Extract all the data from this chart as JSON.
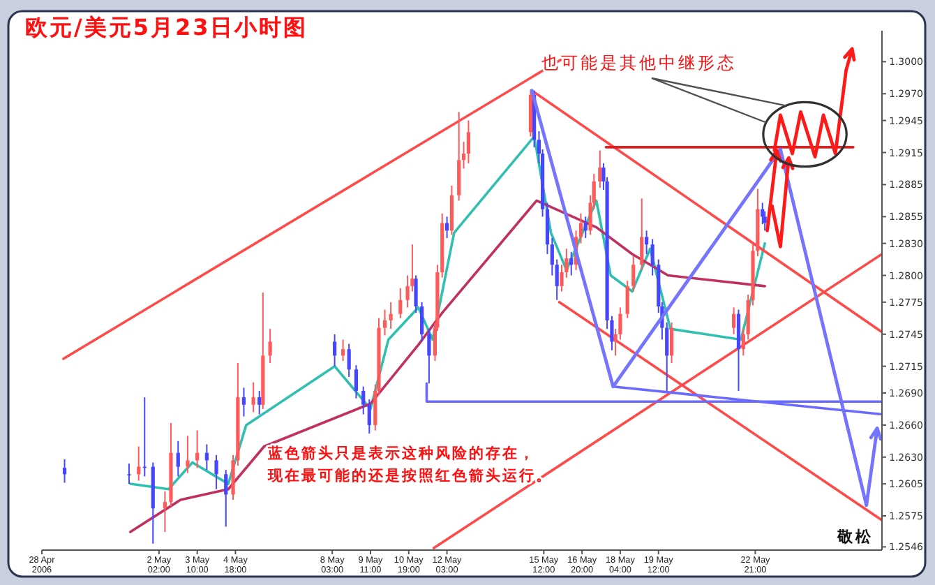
{
  "chart_data": {
    "type": "candlestick",
    "title": "欧元/美元5月23日小时图",
    "annotations": [
      "也可能是其他中继形态",
      "蓝色箭头只是表示这种风险的存在，",
      "现在最可能的还是按照红色箭头运行。",
      "敬松"
    ],
    "xlim": [
      "2006-04-28",
      "2006-05-27T07:00"
    ],
    "ylim": [
      1.2543,
      1.3029
    ],
    "xticks": [
      {
        "value": "2006-04-28",
        "label": "28 Apr 2006"
      },
      {
        "value": "2006-05-02T02:00",
        "label": "2 May 02:00"
      },
      {
        "value": "2006-05-03T10:00",
        "label": "3 May 10:00"
      },
      {
        "value": "2006-05-04T18:00",
        "label": "4 May 18:00"
      },
      {
        "value": "2006-05-08T03:00",
        "label": "8 May 03:00"
      },
      {
        "value": "2006-05-09T11:00",
        "label": "9 May 11:00"
      },
      {
        "value": "2006-05-10T19:00",
        "label": "10 May 19:00"
      },
      {
        "value": "2006-05-12T03:00",
        "label": "12 May 03:00"
      },
      {
        "value": "2006-05-15T12:00",
        "label": "15 May 12:00"
      },
      {
        "value": "2006-05-16T20:00",
        "label": "16 May 20:00"
      },
      {
        "value": "2006-05-18T04:00",
        "label": "18 May 04:00"
      },
      {
        "value": "2006-05-19T12:00",
        "label": "19 May 12:00"
      },
      {
        "value": "2006-05-22T21:00",
        "label": "22 May 21:00"
      }
    ],
    "yticks": [
      {
        "value": 1.3,
        "label": "1.3000"
      },
      {
        "value": 1.297,
        "label": "1.2970"
      },
      {
        "value": 1.2945,
        "label": "1.2945"
      },
      {
        "value": 1.2915,
        "label": "1.2915"
      },
      {
        "value": 1.2885,
        "label": "1.2885"
      },
      {
        "value": 1.2855,
        "label": "1.2855"
      },
      {
        "value": 1.283,
        "label": "1.2830"
      },
      {
        "value": 1.28,
        "label": "1.2800"
      },
      {
        "value": 1.2775,
        "label": "1.2775"
      },
      {
        "value": 1.2745,
        "label": "1.2745"
      },
      {
        "value": 1.2715,
        "label": "1.2715"
      },
      {
        "value": 1.269,
        "label": "1.2690"
      },
      {
        "value": 1.266,
        "label": "1.2660"
      },
      {
        "value": 1.263,
        "label": "1.2630"
      },
      {
        "value": 1.2605,
        "label": "1.2605"
      },
      {
        "value": 1.2575,
        "label": "1.2575"
      },
      {
        "value": 1.2546,
        "label": "1.2546"
      }
    ],
    "x": [
      "2006-04-28T19:00",
      "2006-05-01T01:00",
      "2006-05-01T09:00",
      "2006-05-01T14:00",
      "2006-05-01T21:00",
      "2006-05-02T07:00",
      "2006-05-02T12:00",
      "2006-05-02T18:00",
      "2006-05-03T02:00",
      "2006-05-03T10:00",
      "2006-05-03T18:00",
      "2006-05-04T02:00",
      "2006-05-04T10:00",
      "2006-05-04T16:00",
      "2006-05-04T20:00",
      "2006-05-05T01:00",
      "2006-05-05T09:00",
      "2006-05-05T14:00",
      "2006-05-05T17:00",
      "2006-05-05T23:00",
      "2006-05-08T05:00",
      "2006-05-08T12:00",
      "2006-05-08T17:00",
      "2006-05-08T23:00",
      "2006-05-09T05:00",
      "2006-05-09T10:00",
      "2006-05-09T15:00",
      "2006-05-09T18:00",
      "2006-05-09T23:00",
      "2006-05-10T04:00",
      "2006-05-10T12:00",
      "2006-05-10T18:00",
      "2006-05-10T22:00",
      "2006-05-11T01:00",
      "2006-05-11T06:00",
      "2006-05-11T12:00",
      "2006-05-11T17:00",
      "2006-05-11T19:00",
      "2006-05-11T23:00",
      "2006-05-12T03:00",
      "2006-05-12T07:00",
      "2006-05-12T13:00",
      "2006-05-12T17:00",
      "2006-05-12T21:00",
      "2006-05-15T01:00",
      "2006-05-15T04:00",
      "2006-05-15T08:00",
      "2006-05-15T11:00",
      "2006-05-15T15:00",
      "2006-05-15T19:00",
      "2006-05-15T23:00",
      "2006-05-16T03:00",
      "2006-05-16T07:00",
      "2006-05-16T11:00",
      "2006-05-16T15:00",
      "2006-05-16T19:00",
      "2006-05-16T23:00",
      "2006-05-17T03:00",
      "2006-05-17T06:00",
      "2006-05-17T11:00",
      "2006-05-17T14:00",
      "2006-05-17T17:00",
      "2006-05-17T21:00",
      "2006-05-18T00:00",
      "2006-05-18T04:00",
      "2006-05-18T10:00",
      "2006-05-18T15:00",
      "2006-05-18T22:00",
      "2006-05-19T02:00",
      "2006-05-19T07:00",
      "2006-05-19T12:00",
      "2006-05-19T15:00",
      "2006-05-19T19:00",
      "2006-05-19T23:00",
      "2006-05-22T03:00",
      "2006-05-22T07:00",
      "2006-05-22T11:00",
      "2006-05-22T15:00",
      "2006-05-22T19:00",
      "2006-05-22T23:00",
      "2006-05-23T03:00",
      "2006-05-23T05:00"
    ],
    "ohlc": [
      [
        1.262,
        1.2628,
        1.2606,
        1.2614
      ],
      [
        1.2614,
        1.2624,
        1.2605,
        1.2614
      ],
      [
        1.2614,
        1.264,
        1.2608,
        1.2621
      ],
      [
        1.2621,
        1.2686,
        1.2612,
        1.2621
      ],
      [
        1.2621,
        1.2625,
        1.2549,
        1.2582
      ],
      [
        1.2582,
        1.2598,
        1.256,
        1.2588
      ],
      [
        1.2588,
        1.2662,
        1.2584,
        1.2634
      ],
      [
        1.2634,
        1.2645,
        1.2612,
        1.2621
      ],
      [
        1.2621,
        1.265,
        1.2615,
        1.2627
      ],
      [
        1.2627,
        1.2655,
        1.262,
        1.2634
      ],
      [
        1.2634,
        1.2642,
        1.2618,
        1.2627
      ],
      [
        1.2627,
        1.2632,
        1.26,
        1.2614
      ],
      [
        1.2614,
        1.2618,
        1.2565,
        1.2595
      ],
      [
        1.2595,
        1.2632,
        1.259,
        1.2627
      ],
      [
        1.2627,
        1.2718,
        1.2622,
        1.2686
      ],
      [
        1.2686,
        1.2695,
        1.2668,
        1.2679
      ],
      [
        1.2679,
        1.27,
        1.2672,
        1.2686
      ],
      [
        1.2686,
        1.2692,
        1.267,
        1.2679
      ],
      [
        1.2679,
        1.2784,
        1.2675,
        1.2725
      ],
      [
        1.2725,
        1.275,
        1.2718,
        1.2738
      ],
      [
        1.2738,
        1.2745,
        1.2715,
        1.2725
      ],
      [
        1.2725,
        1.274,
        1.272,
        1.2731
      ],
      [
        1.2731,
        1.2736,
        1.2705,
        1.2712
      ],
      [
        1.2712,
        1.2716,
        1.2685,
        1.2692
      ],
      [
        1.2692,
        1.2696,
        1.267,
        1.2679
      ],
      [
        1.2679,
        1.2684,
        1.2652,
        1.266
      ],
      [
        1.266,
        1.2698,
        1.2655,
        1.2692
      ],
      [
        1.2692,
        1.276,
        1.2688,
        1.2751
      ],
      [
        1.2751,
        1.2768,
        1.2744,
        1.2758
      ],
      [
        1.2758,
        1.2775,
        1.275,
        1.2764
      ],
      [
        1.2764,
        1.2788,
        1.276,
        1.2777
      ],
      [
        1.2777,
        1.28,
        1.277,
        1.279
      ],
      [
        1.279,
        1.2829,
        1.2785,
        1.2797
      ],
      [
        1.2797,
        1.28,
        1.2765,
        1.2771
      ],
      [
        1.2771,
        1.2775,
        1.2738,
        1.2745
      ],
      [
        1.2745,
        1.275,
        1.2699,
        1.2725
      ],
      [
        1.2725,
        1.2756,
        1.272,
        1.2751
      ],
      [
        1.2751,
        1.281,
        1.2748,
        1.2803
      ],
      [
        1.2803,
        1.2858,
        1.2798,
        1.2849
      ],
      [
        1.2849,
        1.2855,
        1.2835,
        1.2842
      ],
      [
        1.2842,
        1.2884,
        1.2838,
        1.2875
      ],
      [
        1.2875,
        1.2953,
        1.287,
        1.2908
      ],
      [
        1.2908,
        1.2925,
        1.29,
        1.2914
      ],
      [
        1.2914,
        1.2945,
        1.2905,
        1.2934
      ],
      [
        1.2934,
        1.2974,
        1.293,
        1.2969
      ],
      [
        1.2969,
        1.2973,
        1.292,
        1.2927
      ],
      [
        1.2927,
        1.2935,
        1.2905,
        1.2914
      ],
      [
        1.2914,
        1.2918,
        1.2855,
        1.2862
      ],
      [
        1.2862,
        1.2868,
        1.282,
        1.2829
      ],
      [
        1.2829,
        1.2835,
        1.28,
        1.281
      ],
      [
        1.281,
        1.2815,
        1.2777,
        1.279
      ],
      [
        1.279,
        1.281,
        1.2785,
        1.2803
      ],
      [
        1.2803,
        1.2825,
        1.2798,
        1.2816
      ],
      [
        1.2816,
        1.2822,
        1.28,
        1.281
      ],
      [
        1.281,
        1.2842,
        1.2805,
        1.2836
      ],
      [
        1.2836,
        1.2858,
        1.283,
        1.2849
      ],
      [
        1.2849,
        1.2855,
        1.2835,
        1.2842
      ],
      [
        1.2842,
        1.2875,
        1.2838,
        1.2868
      ],
      [
        1.2868,
        1.2895,
        1.2862,
        1.2888
      ],
      [
        1.2888,
        1.2917,
        1.2882,
        1.2901
      ],
      [
        1.2901,
        1.2905,
        1.288,
        1.2888
      ],
      [
        1.2888,
        1.2892,
        1.275,
        1.2758
      ],
      [
        1.2758,
        1.2762,
        1.273,
        1.2738
      ],
      [
        1.2738,
        1.275,
        1.2725,
        1.2745
      ],
      [
        1.2745,
        1.277,
        1.274,
        1.2764
      ],
      [
        1.2764,
        1.2795,
        1.276,
        1.279
      ],
      [
        1.279,
        1.2818,
        1.2785,
        1.281
      ],
      [
        1.281,
        1.2872,
        1.2805,
        1.2836
      ],
      [
        1.2836,
        1.2842,
        1.282,
        1.2829
      ],
      [
        1.2829,
        1.2834,
        1.28,
        1.281
      ],
      [
        1.281,
        1.2815,
        1.2765,
        1.2771
      ],
      [
        1.2771,
        1.2775,
        1.274,
        1.2751
      ],
      [
        1.2751,
        1.2756,
        1.2692,
        1.2725
      ],
      [
        1.2725,
        1.2756,
        1.2718,
        1.2751
      ],
      [
        1.2751,
        1.277,
        1.2745,
        1.2764
      ],
      [
        1.2764,
        1.2768,
        1.2692,
        1.2731
      ],
      [
        1.2731,
        1.275,
        1.2725,
        1.2745
      ],
      [
        1.2745,
        1.2782,
        1.274,
        1.2777
      ],
      [
        1.2777,
        1.283,
        1.2772,
        1.2823
      ],
      [
        1.2823,
        1.2881,
        1.2818,
        1.2862
      ],
      [
        1.2862,
        1.2868,
        1.2848,
        1.2855
      ],
      [
        1.2855,
        1.286,
        1.2842,
        1.2849
      ]
    ],
    "colors": [
      "#4646ff",
      "#4646ff",
      "#ff5a5a",
      "#4646ff",
      "#4646ff",
      "#ff5a5a",
      "#ff5a5a",
      "#4646ff",
      "#ff5a5a",
      "#ff5a5a",
      "#4646ff",
      "#4646ff",
      "#4646ff",
      "#ff5a5a",
      "#ff5a5a",
      "#4646ff",
      "#ff5a5a",
      "#4646ff",
      "#ff5a5a",
      "#ff5a5a",
      "#4646ff",
      "#ff5a5a",
      "#4646ff",
      "#4646ff",
      "#4646ff",
      "#4646ff",
      "#ff5a5a",
      "#ff5a5a",
      "#ff5a5a",
      "#ff5a5a",
      "#ff5a5a",
      "#ff5a5a",
      "#ff5a5a",
      "#4646ff",
      "#4646ff",
      "#4646ff",
      "#ff5a5a",
      "#ff5a5a",
      "#ff5a5a",
      "#4646ff",
      "#ff5a5a",
      "#ff5a5a",
      "#ff5a5a",
      "#ff5a5a",
      "#ff5a5a",
      "#4646ff",
      "#4646ff",
      "#4646ff",
      "#4646ff",
      "#4646ff",
      "#4646ff",
      "#ff5a5a",
      "#ff5a5a",
      "#4646ff",
      "#ff5a5a",
      "#ff5a5a",
      "#4646ff",
      "#ff5a5a",
      "#ff5a5a",
      "#ff5a5a",
      "#4646ff",
      "#4646ff",
      "#4646ff",
      "#ff5a5a",
      "#ff5a5a",
      "#ff5a5a",
      "#ff5a5a",
      "#ff5a5a",
      "#4646ff",
      "#4646ff",
      "#4646ff",
      "#4646ff",
      "#4646ff",
      "#ff5a5a",
      "#ff5a5a",
      "#4646ff",
      "#ff5a5a",
      "#ff5a5a",
      "#ff5a5a",
      "#ff5a5a",
      "#4646ff",
      "#4646ff"
    ],
    "series": [
      {
        "type": "line",
        "color": "#30c0b0",
        "x": [
          "2006-05-01T02:00",
          "2006-05-02T10:00",
          "2006-05-03T06:00",
          "2006-05-04T12:00",
          "2006-05-05T03:00",
          "2006-05-08T05:00",
          "2006-05-09T11:00",
          "2006-05-10T02:00",
          "2006-05-11T03:00",
          "2006-05-11T15:00",
          "2006-05-12T09:00",
          "2006-05-15T04:00",
          "2006-05-15T18:00",
          "2006-05-16T07:00",
          "2006-05-17T08:00",
          "2006-05-17T20:00",
          "2006-05-18T14:00",
          "2006-05-19T05:00",
          "2006-05-19T22:00",
          "2006-05-22T09:00",
          "2006-05-23T05:00"
        ],
        "values": [
          1.2605,
          1.26,
          1.2625,
          1.2605,
          1.266,
          1.2715,
          1.2675,
          1.274,
          1.277,
          1.274,
          1.284,
          1.293,
          1.284,
          1.2805,
          1.287,
          1.28,
          1.2785,
          1.2825,
          1.275,
          1.274,
          1.283
        ]
      },
      {
        "type": "line",
        "color": "#c03060",
        "x": [
          "2006-05-01T02:00",
          "2006-05-02T20:00",
          "2006-05-04T12:00",
          "2006-05-05T18:00",
          "2006-05-09T11:00",
          "2006-05-11T03:00",
          "2006-05-11T23:00",
          "2006-05-15T06:00",
          "2006-05-16T02:00",
          "2006-05-17T08:00",
          "2006-05-18T14:00",
          "2006-05-19T20:00",
          "2006-05-23T05:00"
        ],
        "values": [
          1.256,
          1.259,
          1.26,
          1.264,
          1.268,
          1.2735,
          1.2765,
          1.287,
          1.286,
          1.2845,
          1.282,
          1.28,
          1.279
        ]
      },
      {
        "type": "line",
        "color": "#ff4a4a",
        "x": [
          "2006-04-28T18:00",
          "2006-05-16T07:00"
        ],
        "values": [
          1.2722,
          1.3005
        ]
      },
      {
        "type": "line",
        "color": "#ff4a4a",
        "x": [
          "2006-05-15T02:00",
          "2006-05-27T07:00"
        ],
        "values": [
          1.2973,
          1.2747
        ]
      },
      {
        "type": "line",
        "color": "#ff4a4a",
        "x": [
          "2006-05-16T01:00",
          "2006-05-27T07:00"
        ],
        "values": [
          1.2775,
          1.2571
        ]
      },
      {
        "type": "line",
        "color": "#ff4a4a",
        "x": [
          "2006-05-11T16:00",
          "2006-05-27T07:00"
        ],
        "values": [
          1.2545,
          1.282
        ]
      },
      {
        "type": "line",
        "color": "#e02020",
        "x": [
          "2006-05-17T16:00",
          "2006-05-26T07:00"
        ],
        "values": [
          1.292,
          1.292
        ]
      },
      {
        "type": "line",
        "color": "#6a6aff",
        "x": [
          "2006-05-11T10:00",
          "2006-05-11T10:00",
          "2006-05-27T07:00"
        ],
        "values": [
          1.2699,
          1.2682,
          1.2682
        ]
      },
      {
        "type": "line",
        "color": "#6a6aff",
        "x": [
          "2006-05-17T22:00",
          "2006-05-27T07:00"
        ],
        "values": [
          1.2696,
          1.267
        ]
      }
    ]
  }
}
